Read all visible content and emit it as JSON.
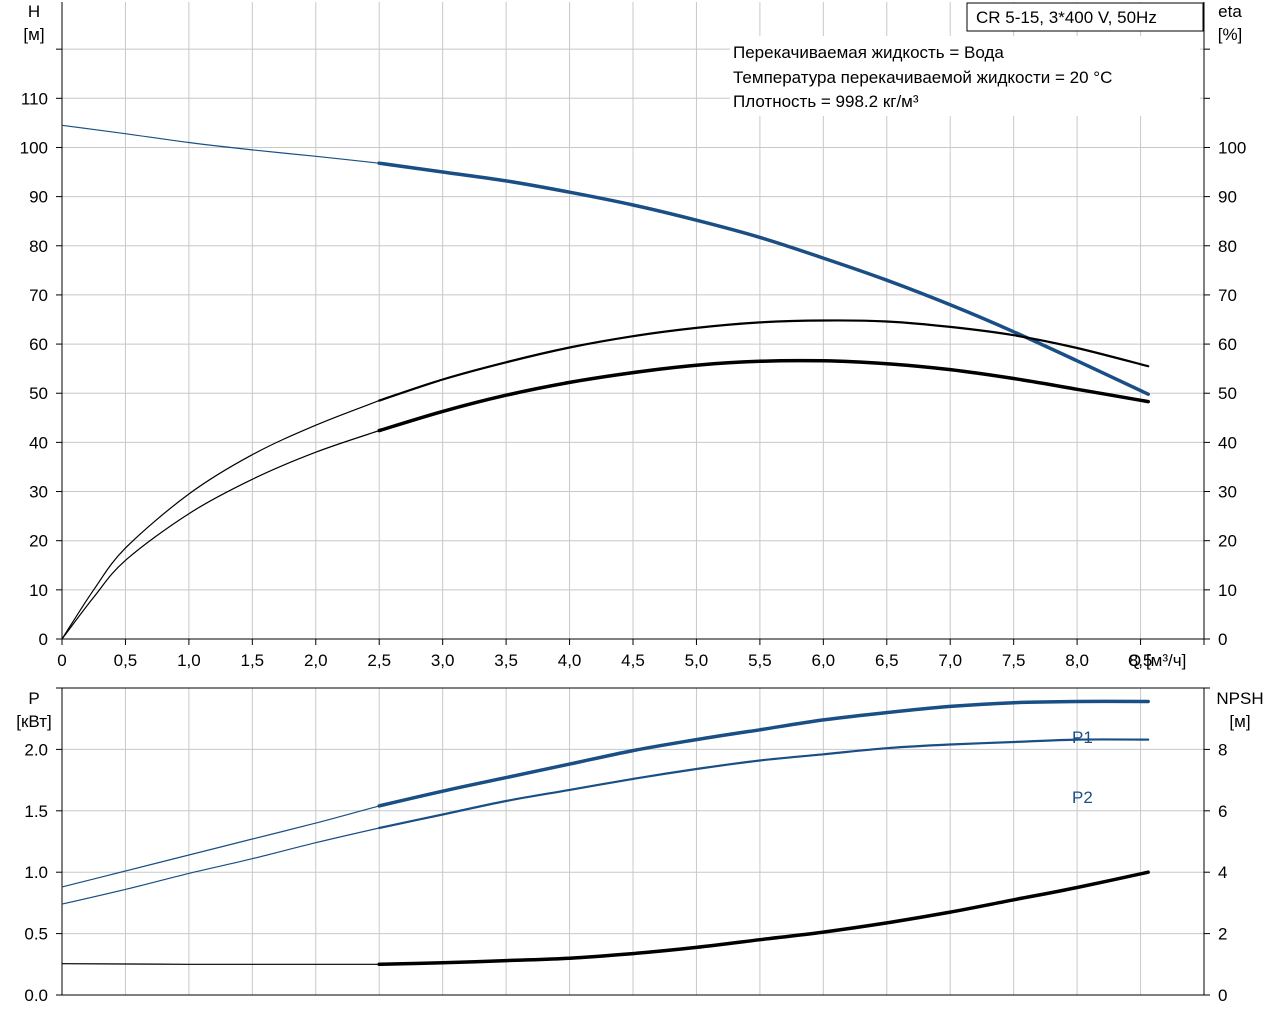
{
  "header": {
    "model": "CR 5-15, 3*400 V, 50Hz",
    "fluid": "Перекачиваемая жидкость = Вода",
    "temperature": "Температура перекачиваемой жидкости = 20 °C",
    "density": "Плотность = 998.2 кг/м³"
  },
  "colors": {
    "blue": "#1a4f85",
    "black": "#000000",
    "grid": "#c8c8c8"
  },
  "chart_data": [
    {
      "type": "line",
      "xlabel": "Q [м³/ч]",
      "xlim": [
        0,
        9.0
      ],
      "xticks": [
        0,
        0.5,
        1.0,
        1.5,
        2.0,
        2.5,
        3.0,
        3.5,
        4.0,
        4.5,
        5.0,
        5.5,
        6.0,
        6.5,
        7.0,
        7.5,
        8.0,
        8.5
      ],
      "xtick_labels": [
        "0",
        "0,5",
        "1,0",
        "1,5",
        "2,0",
        "2,5",
        "3,0",
        "3,5",
        "4,0",
        "4,5",
        "5,0",
        "5,5",
        "6,0",
        "6,5",
        "7,0",
        "7,5",
        "8,0",
        "8,5"
      ],
      "y_left": {
        "label_top": "H",
        "label_unit": "[м]",
        "lim": [
          0,
          130
        ],
        "ticks": [
          0,
          10,
          20,
          30,
          40,
          50,
          60,
          70,
          80,
          90,
          100,
          110
        ]
      },
      "y_right": {
        "label_top": "eta",
        "label_unit": "[%]",
        "lim": [
          0,
          130
        ],
        "ticks": [
          0,
          10,
          20,
          30,
          40,
          50,
          60,
          70,
          80,
          90,
          100
        ]
      },
      "grid": true,
      "series": [
        {
          "axis": "left",
          "color": "#1a4f85",
          "x": [
            0,
            0.5,
            1.0,
            1.5,
            2.0,
            2.5,
            3.0,
            3.5,
            4.0,
            4.5,
            5.0,
            5.5,
            6.0,
            6.5,
            7.0,
            7.5,
            8.0,
            8.56
          ],
          "y": [
            104.5,
            102.8,
            101.0,
            99.5,
            98.2,
            96.8,
            95.0,
            93.2,
            90.9,
            88.3,
            85.2,
            81.7,
            77.5,
            73.0,
            68.0,
            62.5,
            56.6,
            49.8
          ]
        },
        {
          "axis": "right",
          "color": "#000000",
          "x": [
            0,
            0.25,
            0.5,
            1.0,
            1.5,
            2.0,
            2.5,
            3.0,
            3.5,
            4.0,
            4.5,
            5.0,
            5.5,
            6.0,
            6.5,
            7.0,
            7.5,
            8.0,
            8.56
          ],
          "y": [
            0,
            10,
            18.5,
            29.5,
            37.5,
            43.5,
            48.5,
            52.8,
            56.3,
            59.3,
            61.6,
            63.3,
            64.4,
            64.8,
            64.6,
            63.5,
            61.8,
            59.2,
            55.5
          ]
        },
        {
          "axis": "right",
          "color": "#000000",
          "x": [
            0,
            0.25,
            0.5,
            1.0,
            1.5,
            2.0,
            2.5,
            3.0,
            3.5,
            4.0,
            4.5,
            5.0,
            5.5,
            6.0,
            6.5,
            7.0,
            7.5,
            8.0,
            8.56
          ],
          "y": [
            0,
            8.5,
            16,
            25.5,
            32.5,
            38,
            42.4,
            46.3,
            49.6,
            52.2,
            54.2,
            55.7,
            56.5,
            56.6,
            56.0,
            54.8,
            53.0,
            50.8,
            48.3
          ]
        }
      ]
    },
    {
      "type": "line",
      "xlim": [
        0,
        9.0
      ],
      "y_left": {
        "label_top": "P",
        "label_unit": "[кВт]",
        "lim": [
          0,
          2.5
        ],
        "ticks": [
          0.0,
          0.5,
          1.0,
          1.5,
          2.0
        ],
        "tick_labels": [
          "0.0",
          "0.5",
          "1.0",
          "1.5",
          "2.0"
        ]
      },
      "y_right": {
        "label_top": "NPSH",
        "label_unit": "[м]",
        "lim": [
          0,
          10
        ],
        "ticks": [
          0,
          2,
          4,
          6,
          8
        ],
        "tick_labels": [
          "0",
          "2",
          "4",
          "6",
          "8"
        ]
      },
      "grid": true,
      "series": [
        {
          "name": "P1",
          "axis": "left",
          "color": "#1a4f85",
          "x": [
            0,
            0.5,
            1.0,
            1.5,
            2.0,
            2.5,
            3.0,
            3.5,
            4.0,
            4.5,
            5.0,
            5.5,
            6.0,
            6.5,
            7.0,
            7.5,
            8.0,
            8.56
          ],
          "y": [
            0.88,
            1.01,
            1.14,
            1.27,
            1.4,
            1.54,
            1.66,
            1.77,
            1.88,
            1.99,
            2.08,
            2.16,
            2.24,
            2.3,
            2.35,
            2.38,
            2.39,
            2.39
          ]
        },
        {
          "name": "P2",
          "axis": "left",
          "color": "#1a4f85",
          "x": [
            0,
            0.5,
            1.0,
            1.5,
            2.0,
            2.5,
            3.0,
            3.5,
            4.0,
            4.5,
            5.0,
            5.5,
            6.0,
            6.5,
            7.0,
            7.5,
            8.0,
            8.56
          ],
          "y": [
            0.74,
            0.86,
            0.99,
            1.11,
            1.24,
            1.36,
            1.47,
            1.58,
            1.67,
            1.76,
            1.84,
            1.91,
            1.96,
            2.01,
            2.04,
            2.06,
            2.08,
            2.08
          ]
        },
        {
          "axis": "right",
          "color": "#000000",
          "x": [
            0,
            0.5,
            1.0,
            1.5,
            2.0,
            2.5,
            3.0,
            3.5,
            4.0,
            4.5,
            5.0,
            5.5,
            6.0,
            6.5,
            7.0,
            7.5,
            8.0,
            8.56
          ],
          "y": [
            1.02,
            1.01,
            1.0,
            1.0,
            1.0,
            1.0,
            1.05,
            1.12,
            1.2,
            1.35,
            1.55,
            1.8,
            2.05,
            2.35,
            2.7,
            3.1,
            3.5,
            4.0
          ]
        }
      ]
    }
  ]
}
